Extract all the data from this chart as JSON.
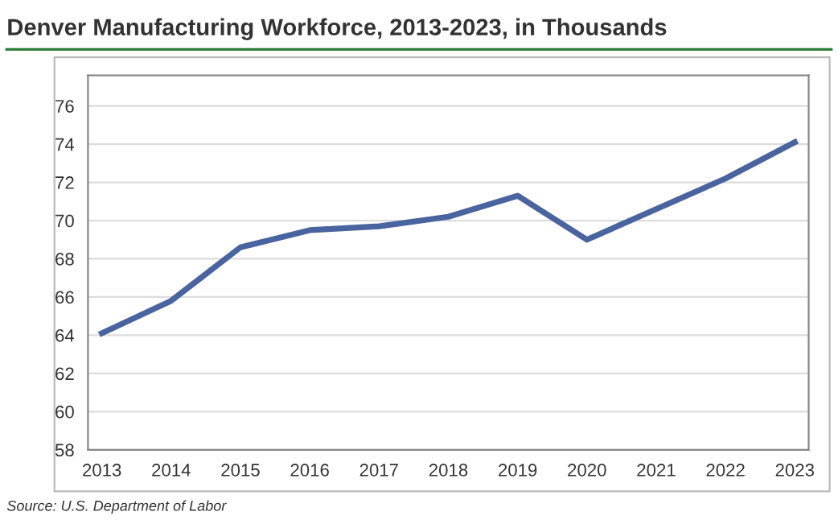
{
  "chart_data": {
    "type": "line",
    "title": "Denver Manufacturing Workforce, 2013-2023, in Thousands",
    "categories": [
      "2013",
      "2014",
      "2015",
      "2016",
      "2017",
      "2018",
      "2019",
      "2020",
      "2021",
      "2022",
      "2023"
    ],
    "series": [
      {
        "color": "#4a64a0",
        "values": [
          64.1,
          65.8,
          68.6,
          69.5,
          69.7,
          70.2,
          71.3,
          69.0,
          70.6,
          72.2,
          74.1
        ]
      }
    ],
    "ylim": [
      58,
      77.6
    ],
    "yticks": [
      58,
      60,
      62,
      64,
      66,
      68,
      70,
      72,
      74,
      76
    ],
    "grid": "y",
    "marker": "none",
    "line_style": "solid",
    "annotations": [
      "Source: U.S. Department of Labor"
    ]
  }
}
